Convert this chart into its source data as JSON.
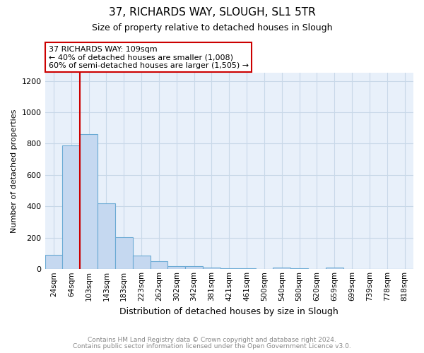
{
  "title1": "37, RICHARDS WAY, SLOUGH, SL1 5TR",
  "title2": "Size of property relative to detached houses in Slough",
  "xlabel": "Distribution of detached houses by size in Slough",
  "ylabel": "Number of detached properties",
  "categories": [
    "24sqm",
    "64sqm",
    "103sqm",
    "143sqm",
    "183sqm",
    "223sqm",
    "262sqm",
    "302sqm",
    "342sqm",
    "381sqm",
    "421sqm",
    "461sqm",
    "500sqm",
    "540sqm",
    "580sqm",
    "620sqm",
    "659sqm",
    "699sqm",
    "739sqm",
    "778sqm",
    "818sqm"
  ],
  "values": [
    90,
    790,
    860,
    420,
    205,
    85,
    50,
    20,
    20,
    10,
    5,
    5,
    0,
    10,
    5,
    0,
    10,
    0,
    0,
    0,
    0
  ],
  "bar_color": "#c5d8f0",
  "bar_edge_color": "#6aaad4",
  "grid_color": "#c8d8e8",
  "background_color": "#e8f0fa",
  "vline_color": "#cc0000",
  "vline_x": 1.5,
  "annotation_text": "37 RICHARDS WAY: 109sqm\n← 40% of detached houses are smaller (1,008)\n60% of semi-detached houses are larger (1,505) →",
  "annotation_box_color": "#ffffff",
  "annotation_box_edge": "#cc0000",
  "footer_line1": "Contains HM Land Registry data © Crown copyright and database right 2024.",
  "footer_line2": "Contains public sector information licensed under the Open Government Licence v3.0.",
  "ylim": [
    0,
    1250
  ],
  "yticks": [
    0,
    200,
    400,
    600,
    800,
    1000,
    1200
  ]
}
